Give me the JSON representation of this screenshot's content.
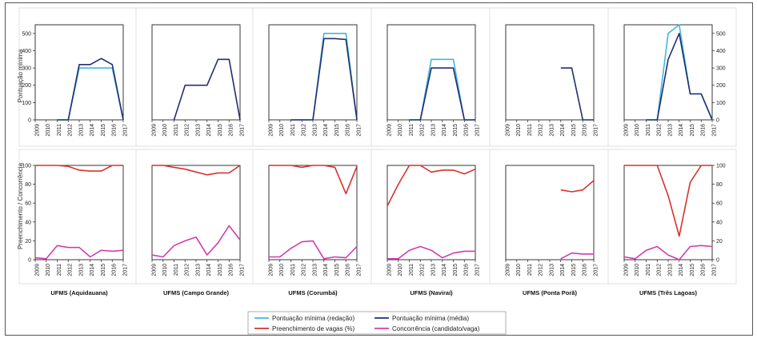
{
  "colors": {
    "redacao": "#40b8e0",
    "media": "#232f6e",
    "preenchimento": "#d9312f",
    "concorrencia": "#d23cae",
    "panel_border": "#d9d9d9",
    "frame": "#555555"
  },
  "left_axis_labels": {
    "top": "Pontuação mínima",
    "bottom": "Preenchimento / Concorrência"
  },
  "legend": [
    {
      "label": "Pontuação mínima (redação)",
      "series": "redacao"
    },
    {
      "label": "Pontuação mínima (média)",
      "series": "media"
    },
    {
      "label": "Preenchimento de vagas (%)",
      "series": "preenchimento"
    },
    {
      "label": "Concorrência (candidato/vaga)",
      "series": "concorrencia"
    }
  ],
  "chart_data": [
    {
      "type": "line",
      "panel": "top",
      "years": [
        "2009",
        "2010",
        "2011",
        "2012",
        "2013",
        "2014",
        "2015",
        "2016",
        "2017"
      ],
      "ylim": [
        0,
        550
      ],
      "yticks": [
        0,
        100,
        200,
        300,
        400,
        500
      ],
      "campuses": [
        {
          "name": "UFMS (Aquidauana)",
          "series": [
            {
              "name": "Pontuação mínima (redação)",
              "key": "redacao",
              "values": [
                null,
                null,
                0,
                0,
                300,
                300,
                300,
                300,
                0
              ]
            },
            {
              "name": "Pontuação mínima (média)",
              "key": "media",
              "values": [
                null,
                null,
                0,
                0,
                320,
                320,
                355,
                320,
                0
              ]
            }
          ]
        },
        {
          "name": "UFMS (Campo Grande)",
          "series": [
            {
              "name": "Pontuação mínima (média)",
              "key": "media",
              "values": [
                null,
                null,
                0,
                200,
                200,
                200,
                350,
                350,
                0
              ]
            }
          ]
        },
        {
          "name": "UFMS (Corumbá)",
          "series": [
            {
              "name": "Pontuação mínima (redação)",
              "key": "redacao",
              "values": [
                null,
                null,
                0,
                0,
                0,
                500,
                500,
                500,
                0
              ]
            },
            {
              "name": "Pontuação mínima (média)",
              "key": "media",
              "values": [
                null,
                null,
                0,
                0,
                0,
                470,
                470,
                465,
                0
              ]
            }
          ]
        },
        {
          "name": "UFMS (Naviraí)",
          "series": [
            {
              "name": "Pontuação mínima (redação)",
              "key": "redacao",
              "values": [
                null,
                null,
                0,
                0,
                350,
                350,
                350,
                0,
                0
              ]
            },
            {
              "name": "Pontuação mínima (média)",
              "key": "media",
              "values": [
                null,
                null,
                0,
                0,
                300,
                300,
                300,
                0,
                0
              ]
            }
          ]
        },
        {
          "name": "UFMS (Ponta Porã)",
          "series": [
            {
              "name": "Pontuação mínima (média)",
              "key": "media",
              "values": [
                null,
                null,
                null,
                null,
                null,
                300,
                300,
                0,
                0
              ]
            }
          ]
        },
        {
          "name": "UFMS (Três Lagoas)",
          "series": [
            {
              "name": "Pontuação mínima (redação)",
              "key": "redacao",
              "values": [
                null,
                null,
                0,
                0,
                500,
                550,
                150,
                150,
                0
              ]
            },
            {
              "name": "Pontuação mínima (média)",
              "key": "media",
              "values": [
                null,
                null,
                0,
                0,
                350,
                500,
                150,
                150,
                0
              ]
            }
          ]
        }
      ]
    },
    {
      "type": "line",
      "panel": "bottom",
      "years": [
        "2009",
        "2010",
        "2011",
        "2012",
        "2013",
        "2014",
        "2015",
        "2016",
        "2017"
      ],
      "ylim": [
        0,
        100
      ],
      "yticks": [
        0,
        20,
        40,
        60,
        80,
        100
      ],
      "campuses": [
        {
          "name": "UFMS (Aquidauana)",
          "series": [
            {
              "name": "Preenchimento de vagas (%)",
              "key": "preenchimento",
              "values": [
                100,
                100,
                100,
                99,
                95,
                94,
                94,
                100,
                100
              ]
            },
            {
              "name": "Concorrência (candidato/vaga)",
              "key": "concorrencia",
              "values": [
                2,
                1,
                15,
                13,
                13,
                3,
                10,
                9,
                10
              ]
            }
          ]
        },
        {
          "name": "UFMS (Campo Grande)",
          "series": [
            {
              "name": "Preenchimento de vagas (%)",
              "key": "preenchimento",
              "values": [
                100,
                100,
                98,
                96,
                93,
                90,
                92,
                92,
                100
              ]
            },
            {
              "name": "Concorrência (candidato/vaga)",
              "key": "concorrencia",
              "values": [
                5,
                3,
                15,
                20,
                24,
                5,
                18,
                36,
                21
              ]
            }
          ]
        },
        {
          "name": "UFMS (Corumbá)",
          "series": [
            {
              "name": "Preenchimento de vagas (%)",
              "key": "preenchimento",
              "values": [
                100,
                100,
                100,
                98,
                100,
                100,
                98,
                70,
                99
              ]
            },
            {
              "name": "Concorrência (candidato/vaga)",
              "key": "concorrencia",
              "values": [
                3,
                3,
                12,
                19,
                20,
                1,
                3,
                2,
                14
              ]
            }
          ]
        },
        {
          "name": "UFMS (Naviraí)",
          "series": [
            {
              "name": "Preenchimento de vagas (%)",
              "key": "preenchimento",
              "values": [
                57,
                80,
                100,
                100,
                93,
                95,
                95,
                91,
                96
              ]
            },
            {
              "name": "Concorrência (candidato/vaga)",
              "key": "concorrencia",
              "values": [
                1,
                1,
                10,
                14,
                10,
                2,
                7,
                9,
                9
              ]
            }
          ]
        },
        {
          "name": "UFMS (Ponta Porã)",
          "series": [
            {
              "name": "Preenchimento de vagas (%)",
              "key": "preenchimento",
              "values": [
                null,
                null,
                null,
                null,
                null,
                74,
                72,
                74,
                84
              ]
            },
            {
              "name": "Concorrência (candidato/vaga)",
              "key": "concorrencia",
              "values": [
                null,
                null,
                null,
                null,
                null,
                1,
                7,
                6,
                6
              ]
            }
          ]
        },
        {
          "name": "UFMS (Três Lagoas)",
          "series": [
            {
              "name": "Preenchimento de vagas (%)",
              "key": "preenchimento",
              "values": [
                100,
                100,
                100,
                100,
                68,
                25,
                82,
                100,
                100
              ]
            },
            {
              "name": "Concorrência (candidato/vaga)",
              "key": "concorrencia",
              "values": [
                3,
                1,
                10,
                14,
                5,
                0,
                14,
                15,
                14
              ]
            }
          ]
        }
      ]
    }
  ]
}
